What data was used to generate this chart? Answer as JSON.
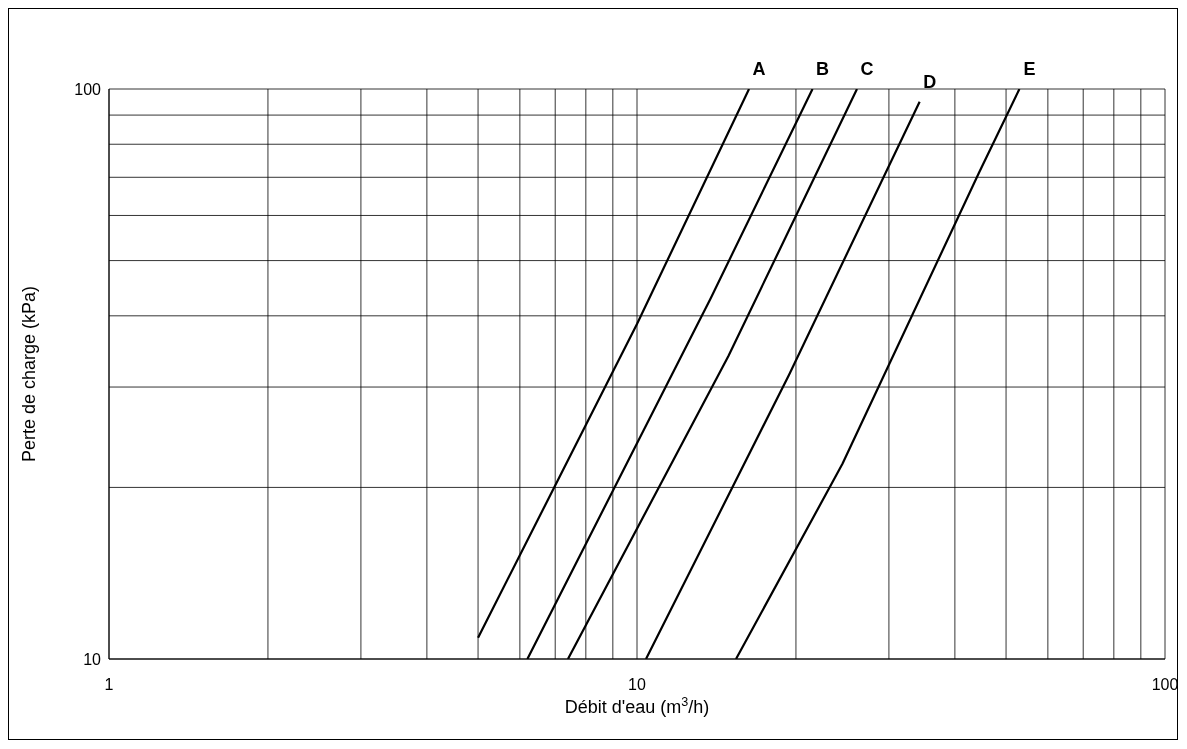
{
  "chart_data": {
    "type": "line",
    "xlabel": "Débit d'eau (m$^{3}$/h)",
    "ylabel": "Perte de charge (kPa)",
    "log": "xy",
    "grid": true,
    "marker": "none",
    "line_style": "solid",
    "xlim": [
      1,
      100
    ],
    "ylim": [
      10,
      100
    ],
    "xticks": [
      1,
      {
        "value": 2,
        "label": null
      },
      {
        "value": 3,
        "label": null
      },
      {
        "value": 4,
        "label": null
      },
      {
        "value": 5,
        "label": null
      },
      {
        "value": 6,
        "label": null
      },
      {
        "value": 7,
        "label": null
      },
      {
        "value": 8,
        "label": null
      },
      {
        "value": 9,
        "label": null
      },
      10,
      {
        "value": 20,
        "label": null
      },
      {
        "value": 30,
        "label": null
      },
      {
        "value": 40,
        "label": null
      },
      {
        "value": 50,
        "label": null
      },
      {
        "value": 60,
        "label": null
      },
      {
        "value": 70,
        "label": null
      },
      {
        "value": 80,
        "label": null
      },
      {
        "value": 90,
        "label": null
      },
      100
    ],
    "yticks": [
      10,
      {
        "value": 20,
        "label": null
      },
      {
        "value": 30,
        "label": null
      },
      {
        "value": 40,
        "label": null
      },
      {
        "value": 50,
        "label": null
      },
      {
        "value": 60,
        "label": null
      },
      {
        "value": 70,
        "label": null
      },
      {
        "value": 80,
        "label": null
      },
      {
        "value": 90,
        "label": null
      },
      100
    ],
    "series": [
      {
        "name": "A",
        "color": "#000000",
        "x": [
          5.0,
          10,
          16.3
        ],
        "values": [
          10.9,
          38.7,
          100
        ]
      },
      {
        "name": "B",
        "color": "#000000",
        "x": [
          6.2,
          13.8,
          21.5
        ],
        "values": [
          10,
          43,
          100
        ]
      },
      {
        "name": "C",
        "color": "#000000",
        "x": [
          7.4,
          14.9,
          26.1
        ],
        "values": [
          10,
          34,
          100
        ]
      },
      {
        "name": "D",
        "color": "#000000",
        "x": [
          10.4,
          19.4,
          34.3
        ],
        "values": [
          10,
          31.5,
          95
        ]
      },
      {
        "name": "E",
        "color": "#000000",
        "x": [
          15.4,
          24.5,
          44.5,
          53
        ],
        "values": [
          10,
          22,
          71.5,
          100
        ]
      }
    ]
  }
}
